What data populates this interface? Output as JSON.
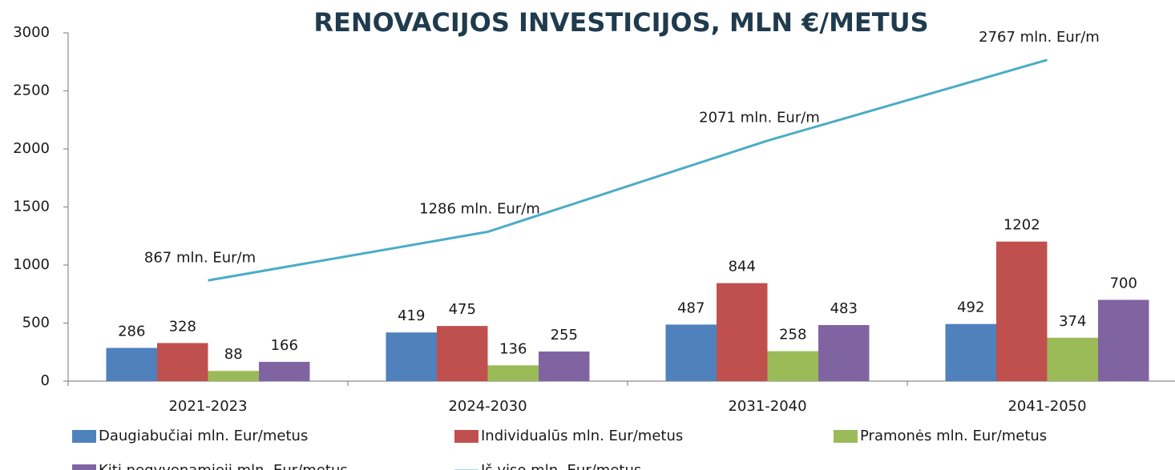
{
  "chart_data": {
    "type": "bar",
    "title": "RENOVACIJOS INVESTICIJOS, MLN €/METUS",
    "categories": [
      "2021-2023",
      "2024-2030",
      "2031-2040",
      "2041-2050"
    ],
    "series": [
      {
        "name": "Daugiabučiai mln. Eur/metus",
        "color": "#4f81bd",
        "values": [
          286,
          419,
          487,
          492
        ]
      },
      {
        "name": "Individualūs  mln. Eur/metus",
        "color": "#c0504d",
        "values": [
          328,
          475,
          844,
          1202
        ]
      },
      {
        "name": "Pramonės mln. Eur/metus",
        "color": "#9bbb59",
        "values": [
          88,
          136,
          258,
          374
        ]
      },
      {
        "name": "Kiti negyvenamieji mln. Eur/metus",
        "color": "#8064a2",
        "values": [
          166,
          255,
          483,
          700
        ]
      },
      {
        "name": "Iš viso mln. Eur/metus",
        "color": "#4bacc6",
        "type": "line",
        "values": [
          867,
          1286,
          2071,
          2767
        ],
        "value_labels": [
          "867 mln. Eur/m",
          "1286 mln. Eur/m",
          "2071 mln. Eur/m",
          "2767 mln. Eur/m"
        ]
      }
    ],
    "ylim": [
      0,
      3000
    ],
    "yticks": [
      0,
      500,
      1000,
      1500,
      2000,
      2500,
      3000
    ],
    "grid": false,
    "legend": "bottom"
  }
}
